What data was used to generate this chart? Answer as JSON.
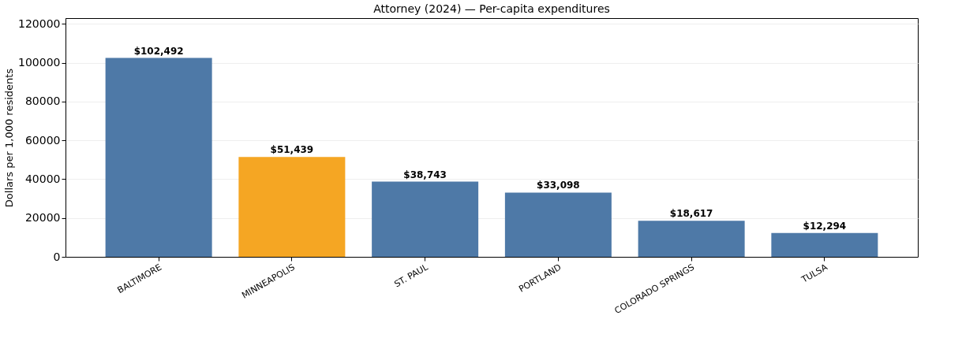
{
  "chart_data": {
    "type": "bar",
    "title": "Attorney (2024) — Per-capita expenditures",
    "ylabel": "Dollars per 1,000 residents",
    "categories": [
      "BALTIMORE",
      "MINNEAPOLIS",
      "ST. PAUL",
      "PORTLAND",
      "COLORADO SPRINGS",
      "TULSA"
    ],
    "values": [
      102492,
      51439,
      38743,
      33098,
      18617,
      12294
    ],
    "colors": [
      "#4e79a7",
      "#f5a623",
      "#4e79a7",
      "#4e79a7",
      "#4e79a7",
      "#4e79a7"
    ],
    "value_labels": [
      "$102,492",
      "$51,439",
      "$38,743",
      "$33,098",
      "$18,617",
      "$12,294"
    ],
    "ylim": [
      0,
      123000
    ],
    "yticks": [
      0,
      20000,
      40000,
      60000,
      80000,
      100000,
      120000
    ],
    "grid": "y"
  }
}
